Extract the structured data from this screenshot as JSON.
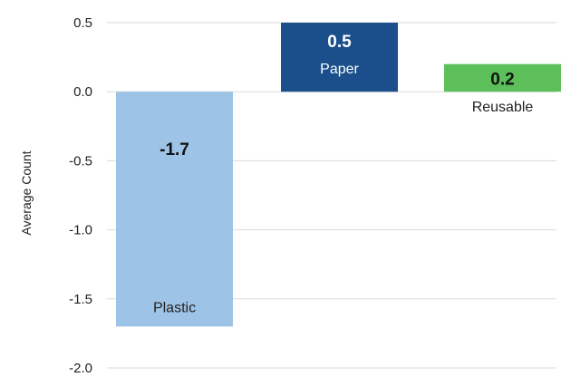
{
  "chart_data": {
    "type": "bar",
    "title": "",
    "xlabel": "",
    "ylabel": "Average Count",
    "ylim": [
      -2.0,
      0.5
    ],
    "yticks": [
      0.5,
      0.0,
      -0.5,
      -1.0,
      -1.5,
      -2.0
    ],
    "ytick_labels": [
      "0.5",
      "0.0",
      "-0.5",
      "-1.0",
      "-1.5",
      "-2.0"
    ],
    "grid": true,
    "legend": "none",
    "categories": [
      "Plastic",
      "Paper",
      "Reusable"
    ],
    "values": [
      -1.7,
      0.5,
      0.2
    ],
    "value_labels": [
      "-1.7",
      "0.5",
      "0.2"
    ],
    "colors": [
      "#9dc3e6",
      "#1a4f8b",
      "#5cbf5a"
    ],
    "value_label_colors": [
      "#111111",
      "#ffffff",
      "#111111"
    ],
    "category_label_colors": [
      "#222222",
      "#ffffff",
      "#222222"
    ],
    "grid_color": "#d9d9d9"
  }
}
